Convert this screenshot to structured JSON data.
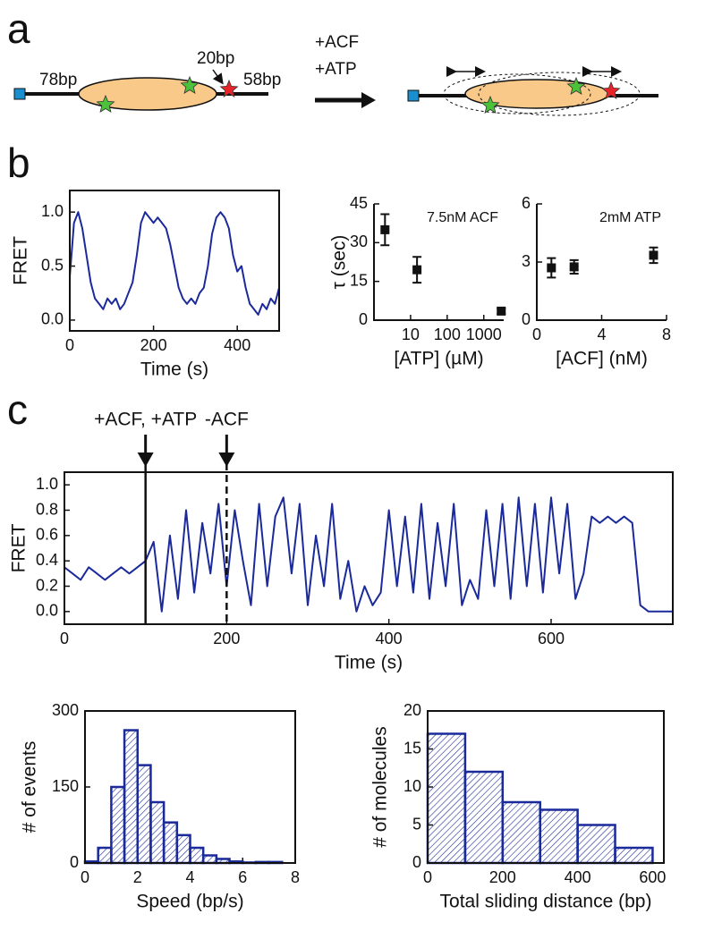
{
  "panel_labels": [
    "a",
    "b",
    "c"
  ],
  "diagram": {
    "left_label": "78bp",
    "middle_label": "20bp",
    "right_label": "58bp",
    "reagent_1": "+ACF",
    "reagent_2": "+ATP"
  },
  "chart_data": [
    {
      "type": "line",
      "xlabel": "Time (s)",
      "ylabel": "FRET",
      "color": "#1b2a9a",
      "box": true,
      "x": [
        0,
        10,
        20,
        30,
        40,
        50,
        60,
        70,
        80,
        90,
        100,
        110,
        120,
        130,
        140,
        150,
        160,
        170,
        180,
        190,
        200,
        210,
        220,
        230,
        240,
        250,
        260,
        270,
        280,
        290,
        300,
        310,
        320,
        330,
        340,
        350,
        360,
        370,
        380,
        390,
        400,
        410,
        420,
        430,
        440,
        450,
        460,
        470,
        480,
        490,
        500
      ],
      "values": [
        0.4,
        0.9,
        1.0,
        0.85,
        0.6,
        0.35,
        0.2,
        0.15,
        0.1,
        0.2,
        0.15,
        0.2,
        0.1,
        0.15,
        0.25,
        0.35,
        0.6,
        0.9,
        1.0,
        0.95,
        0.9,
        0.95,
        0.9,
        0.85,
        0.7,
        0.5,
        0.3,
        0.2,
        0.15,
        0.2,
        0.15,
        0.25,
        0.3,
        0.5,
        0.8,
        0.95,
        1.0,
        0.95,
        0.85,
        0.6,
        0.45,
        0.5,
        0.3,
        0.15,
        0.1,
        0.05,
        0.15,
        0.1,
        0.2,
        0.15,
        0.3
      ],
      "xlim": [
        0,
        500
      ],
      "xticks": [
        0,
        200,
        400
      ],
      "ylim": [
        -0.1,
        1.2
      ],
      "yticks": [
        {
          "value": 0,
          "label": "0.0"
        },
        {
          "value": 0.5,
          "label": "0.5"
        },
        {
          "value": 1,
          "label": "1.0"
        }
      ]
    },
    {
      "type": "scatter",
      "xlabel": "[ATP] (µM)",
      "ylabel": "τ (sec)",
      "annotation": "7.5nM ACF",
      "color": "#111111",
      "box": false,
      "xscale": "log",
      "x": [
        2,
        15,
        3000
      ],
      "values": [
        35,
        19.5,
        3.5
      ],
      "errors": [
        6,
        5,
        1
      ],
      "xlim": [
        1,
        3500
      ],
      "xticks": [
        10,
        100,
        1000
      ],
      "ylim": [
        0,
        45
      ],
      "yticks": [
        0,
        15,
        30,
        45
      ]
    },
    {
      "type": "scatter",
      "xlabel": "[ACF] (nM)",
      "annotation": "2mM ATP",
      "color": "#111111",
      "box": false,
      "x": [
        0.9,
        2.3,
        7.2
      ],
      "values": [
        2.7,
        2.75,
        3.35
      ],
      "errors": [
        0.5,
        0.35,
        0.4
      ],
      "xlim": [
        0,
        8
      ],
      "xticks": [
        0,
        4,
        8
      ],
      "ylim": [
        0,
        6
      ],
      "yticks": [
        0,
        3,
        6
      ]
    },
    {
      "type": "line",
      "xlabel": "Time (s)",
      "ylabel": "FRET",
      "color": "#1b2a9a",
      "box": true,
      "annotations": [
        {
          "text": "+ACF, +ATP",
          "x": 100,
          "style": "solid"
        },
        {
          "text": "-ACF",
          "x": 200,
          "style": "dashed"
        }
      ],
      "x": [
        0,
        10,
        20,
        30,
        40,
        50,
        60,
        70,
        80,
        90,
        100,
        110,
        120,
        130,
        140,
        150,
        160,
        170,
        180,
        190,
        200,
        210,
        220,
        230,
        240,
        250,
        260,
        270,
        280,
        290,
        300,
        310,
        320,
        330,
        340,
        350,
        360,
        370,
        380,
        390,
        400,
        410,
        420,
        430,
        440,
        450,
        460,
        470,
        480,
        490,
        500,
        510,
        520,
        530,
        540,
        550,
        560,
        570,
        580,
        590,
        600,
        610,
        620,
        630,
        640,
        650,
        660,
        670,
        680,
        690,
        700,
        710,
        720,
        730,
        740,
        750
      ],
      "values": [
        0.35,
        0.3,
        0.25,
        0.35,
        0.3,
        0.25,
        0.3,
        0.35,
        0.3,
        0.35,
        0.4,
        0.55,
        0.0,
        0.6,
        0.1,
        0.8,
        0.15,
        0.7,
        0.3,
        0.85,
        0.2,
        0.8,
        0.4,
        0.05,
        0.85,
        0.2,
        0.75,
        0.9,
        0.3,
        0.85,
        0.05,
        0.6,
        0.2,
        0.85,
        0.1,
        0.4,
        0.0,
        0.2,
        0.05,
        0.15,
        0.8,
        0.2,
        0.75,
        0.15,
        0.85,
        0.1,
        0.7,
        0.2,
        0.85,
        0.05,
        0.25,
        0.1,
        0.8,
        0.2,
        0.85,
        0.1,
        0.9,
        0.2,
        0.85,
        0.15,
        0.9,
        0.3,
        0.85,
        0.1,
        0.3,
        0.75,
        0.7,
        0.75,
        0.7,
        0.75,
        0.7,
        0.05,
        0.0,
        0.0,
        0.0,
        0.0
      ],
      "xlim": [
        0,
        750
      ],
      "xticks": [
        0,
        200,
        400,
        600
      ],
      "ylim": [
        -0.1,
        1.1
      ],
      "yticks": [
        {
          "value": 0,
          "label": "0.0"
        },
        {
          "value": 0.2,
          "label": "0.2"
        },
        {
          "value": 0.4,
          "label": "0.4"
        },
        {
          "value": 0.6,
          "label": "0.6"
        },
        {
          "value": 0.8,
          "label": "0.8"
        },
        {
          "value": 1,
          "label": "1.0"
        }
      ]
    },
    {
      "type": "histogram",
      "xlabel": "Speed (bp/s)",
      "ylabel": "# of events",
      "color": "#1b2a9a",
      "box": true,
      "hatch": true,
      "bins": [
        0,
        0.5,
        1,
        1.5,
        2,
        2.5,
        3,
        3.5,
        4,
        4.5,
        5,
        5.5,
        6,
        6.5,
        7,
        7.5
      ],
      "values": [
        3,
        30,
        150,
        262,
        193,
        120,
        80,
        55,
        30,
        15,
        8,
        3,
        1,
        2,
        2
      ],
      "xlim": [
        0,
        8
      ],
      "xticks": [
        0,
        2,
        4,
        6,
        8
      ],
      "ylim": [
        0,
        300
      ],
      "yticks": [
        0,
        150,
        300
      ]
    },
    {
      "type": "histogram",
      "xlabel": "Total sliding distance (bp)",
      "ylabel": "# of molecules",
      "color": "#1b2a9a",
      "box": true,
      "hatch": true,
      "bins": [
        0,
        100,
        200,
        300,
        400,
        500,
        600
      ],
      "values": [
        17,
        12,
        8,
        7,
        5,
        2
      ],
      "xlim": [
        0,
        630
      ],
      "xticks": [
        0,
        200,
        400,
        600
      ],
      "ylim": [
        0,
        20
      ],
      "yticks": [
        0,
        5,
        10,
        15,
        20
      ]
    }
  ]
}
